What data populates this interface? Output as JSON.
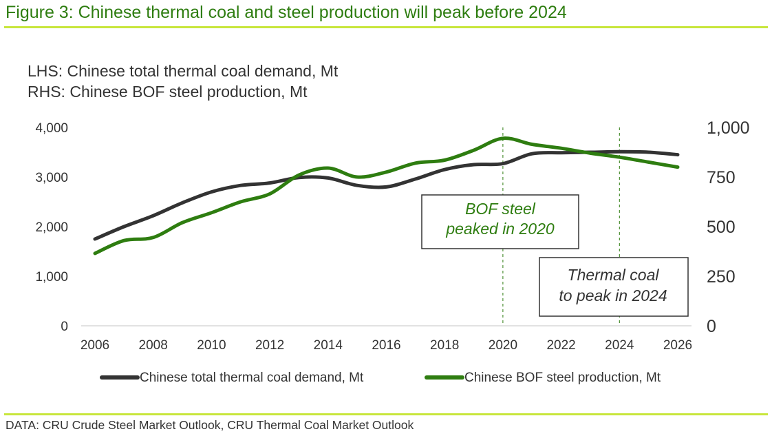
{
  "figure_title": "Figure 3: Chinese thermal coal and steel production will peak before 2024",
  "source": "DATA: CRU Crude Steel Market Outlook, CRU Thermal Coal Market Outlook",
  "colors": {
    "title": "#2e7d10",
    "rule": "#c8e63c",
    "coal": "#333333",
    "steel": "#2e7d10",
    "text": "#333333"
  },
  "chart_data": {
    "type": "line",
    "subtitle_lhs": "LHS: Chinese total thermal coal demand, Mt",
    "subtitle_rhs": "RHS: Chinese BOF steel production, Mt",
    "x": [
      2006,
      2007,
      2008,
      2009,
      2010,
      2011,
      2012,
      2013,
      2014,
      2015,
      2016,
      2017,
      2018,
      2019,
      2020,
      2021,
      2022,
      2023,
      2024,
      2025,
      2026
    ],
    "xticks": [
      "2006",
      "2008",
      "2010",
      "2012",
      "2014",
      "2016",
      "2018",
      "2020",
      "2022",
      "2024",
      "2026"
    ],
    "xlim": [
      2006,
      2026
    ],
    "y_left": {
      "ticks": [
        "0",
        "1,000",
        "2,000",
        "3,000",
        "4,000"
      ],
      "ylim": [
        0,
        4000
      ]
    },
    "y_right": {
      "ticks": [
        "0",
        "250",
        "500",
        "750",
        "1,000"
      ],
      "ylim": [
        0,
        1000
      ]
    },
    "series": [
      {
        "name": "Chinese total thermal coal demand, Mt",
        "axis": "left",
        "values": [
          1750,
          2000,
          2220,
          2480,
          2700,
          2830,
          2880,
          2990,
          2980,
          2830,
          2800,
          2960,
          3150,
          3250,
          3270,
          3470,
          3490,
          3500,
          3510,
          3500,
          3450
        ]
      },
      {
        "name": "Chinese BOF steel production, Mt",
        "axis": "right",
        "values": [
          365,
          430,
          445,
          520,
          570,
          625,
          665,
          760,
          795,
          750,
          775,
          820,
          835,
          885,
          945,
          915,
          895,
          870,
          850,
          825,
          800
        ]
      }
    ],
    "reference_lines": [
      {
        "x": 2020,
        "style": "dashed",
        "color": "#2e7d10"
      },
      {
        "x": 2024,
        "style": "dashed",
        "color": "#2e7d10"
      }
    ],
    "annotations": [
      {
        "lines": [
          "BOF steel",
          "peaked in 2020"
        ],
        "color": "#2e7d10"
      },
      {
        "lines": [
          "Thermal coal",
          "to peak in 2024"
        ],
        "color": "#333333"
      }
    ],
    "legend_position": "bottom"
  }
}
